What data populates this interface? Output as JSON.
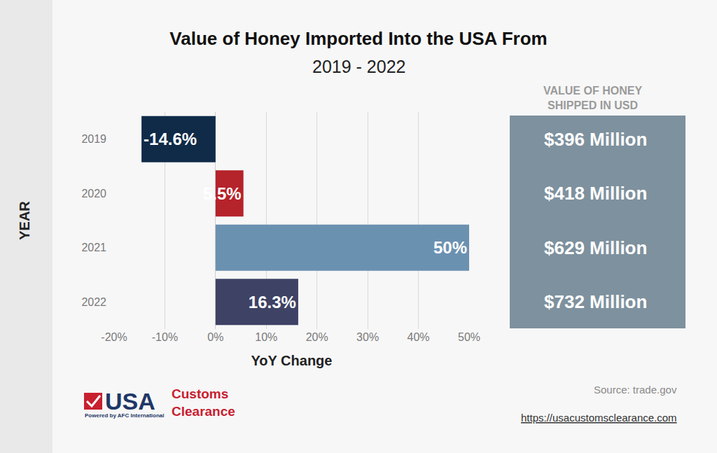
{
  "chart_data": {
    "type": "bar",
    "orientation": "horizontal",
    "title": "Value of Honey Imported Into the USA From",
    "subtitle": "2019 - 2022",
    "xlabel": "YoY Change",
    "ylabel": "YEAR",
    "categories": [
      "2019",
      "2020",
      "2021",
      "2022"
    ],
    "values": [
      -14.6,
      5.5,
      50,
      16.3
    ],
    "value_labels": [
      "-14.6%",
      "5.5%",
      "50%",
      "16.3%"
    ],
    "colors": [
      "#0f2b48",
      "#b5232b",
      "#6b91b1",
      "#3e4265"
    ],
    "data_labels": true,
    "grid": true,
    "xlim": [
      -20,
      50
    ],
    "xticks": [
      {
        "value": -20,
        "label": "-20%"
      },
      {
        "value": -10,
        "label": "-10%"
      },
      {
        "value": 0,
        "label": "0%"
      },
      {
        "value": 10,
        "label": "10%"
      },
      {
        "value": 20,
        "label": "20%"
      },
      {
        "value": 30,
        "label": "30%"
      },
      {
        "value": 40,
        "label": "40%"
      },
      {
        "value": 50,
        "label": "50%"
      }
    ],
    "shipped_value": {
      "header": [
        "VALUE OF HONEY",
        "SHIPPED IN USD"
      ],
      "values": [
        396,
        418,
        629,
        732
      ],
      "value_labels": [
        "$396 Million",
        "$418 Million",
        "$629 Million",
        "$732 Million"
      ]
    },
    "source": "Source: trade.gov",
    "url": "https://usacustomsclearance.com",
    "logo": {
      "mark": "USA",
      "name_lines": [
        "Customs",
        "Clearance"
      ],
      "tagline": "Powered by AFC International"
    }
  }
}
